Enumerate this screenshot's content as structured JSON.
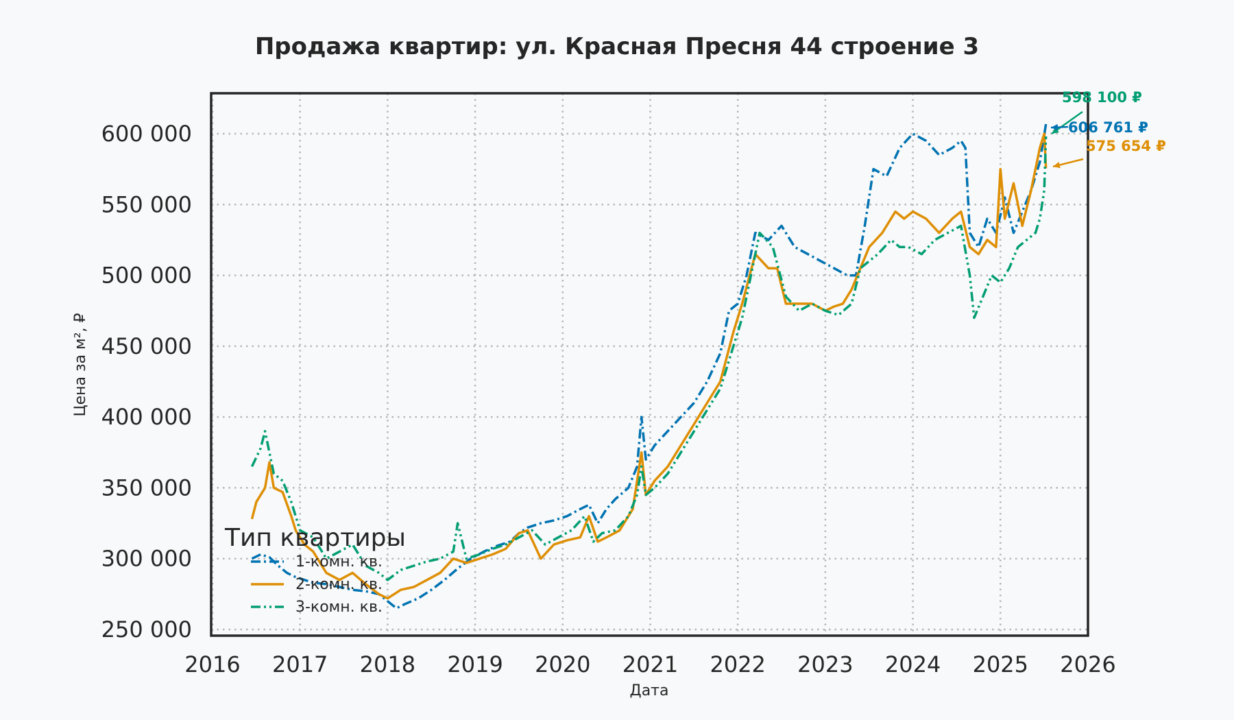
{
  "title": "Продажа квартир: ул. Красная Пресня 44 строение 3",
  "chart_data": {
    "type": "line",
    "title": "Продажа квартир: ул. Красная Пресня 44 строение 3",
    "xlabel": "Дата",
    "ylabel": "Цена за м², ₽",
    "xlim": [
      2016,
      2026
    ],
    "ylim": [
      245000,
      630000
    ],
    "x_ticks": [
      "2016",
      "2017",
      "2018",
      "2019",
      "2020",
      "2021",
      "2022",
      "2023",
      "2024",
      "2025",
      "2026"
    ],
    "y_ticks": [
      "250 000",
      "300 000",
      "350 000",
      "400 000",
      "450 000",
      "500 000",
      "550 000",
      "600 000"
    ],
    "y_tick_values": [
      250000,
      300000,
      350000,
      400000,
      450000,
      500000,
      550000,
      600000
    ],
    "grid": true,
    "legend": {
      "title": "Тип квартиры",
      "position": "lower left",
      "entries": [
        "1-комн. кв.",
        "2-комн. кв.",
        "3-комн. кв."
      ]
    },
    "series": [
      {
        "name": "1-комн. кв.",
        "color": "#0173B2",
        "style": "dashdot",
        "x": [
          2016.45,
          2016.55,
          2016.65,
          2016.75,
          2016.85,
          2016.95,
          2017.05,
          2017.15,
          2017.3,
          2017.45,
          2017.6,
          2017.75,
          2017.9,
          2018.0,
          2018.1,
          2018.2,
          2018.35,
          2018.5,
          2018.65,
          2018.8,
          2018.95,
          2019.1,
          2019.25,
          2019.4,
          2019.5,
          2019.6,
          2019.75,
          2019.9,
          2020.05,
          2020.2,
          2020.3,
          2020.4,
          2020.5,
          2020.6,
          2020.75,
          2020.85,
          2020.9,
          2020.95,
          2021.05,
          2021.2,
          2021.35,
          2021.5,
          2021.65,
          2021.8,
          2021.9,
          2022.0,
          2022.1,
          2022.2,
          2022.35,
          2022.5,
          2022.65,
          2022.8,
          2022.95,
          2023.1,
          2023.25,
          2023.35,
          2023.45,
          2023.55,
          2023.7,
          2023.85,
          2024.0,
          2024.15,
          2024.3,
          2024.45,
          2024.55,
          2024.6,
          2024.65,
          2024.75,
          2024.85,
          2024.95,
          2025.05,
          2025.15,
          2025.25,
          2025.35,
          2025.45,
          2025.52
        ],
        "y": [
          300000,
          303000,
          301000,
          295000,
          290000,
          287000,
          285000,
          283000,
          282000,
          280000,
          278000,
          277000,
          275000,
          270000,
          265000,
          268000,
          272000,
          278000,
          285000,
          293000,
          300000,
          305000,
          309000,
          312000,
          318000,
          322000,
          325000,
          327000,
          330000,
          335000,
          338000,
          325000,
          335000,
          342000,
          350000,
          365000,
          400000,
          370000,
          380000,
          390000,
          400000,
          410000,
          425000,
          445000,
          475000,
          480000,
          500000,
          530000,
          525000,
          535000,
          520000,
          515000,
          510000,
          505000,
          500000,
          500000,
          535000,
          575000,
          570000,
          590000,
          600000,
          595000,
          585000,
          590000,
          595000,
          590000,
          530000,
          520000,
          540000,
          530000,
          555000,
          530000,
          545000,
          560000,
          580000,
          606761
        ]
      },
      {
        "name": "2-комн. кв.",
        "color": "#DE8F05",
        "style": "solid",
        "x": [
          2016.45,
          2016.5,
          2016.6,
          2016.65,
          2016.7,
          2016.8,
          2016.9,
          2016.95,
          2017.05,
          2017.15,
          2017.3,
          2017.45,
          2017.6,
          2017.75,
          2017.9,
          2018.0,
          2018.15,
          2018.3,
          2018.45,
          2018.6,
          2018.75,
          2018.9,
          2019.05,
          2019.2,
          2019.35,
          2019.5,
          2019.6,
          2019.75,
          2019.9,
          2020.05,
          2020.2,
          2020.3,
          2020.4,
          2020.5,
          2020.65,
          2020.8,
          2020.9,
          2020.95,
          2021.05,
          2021.2,
          2021.35,
          2021.5,
          2021.65,
          2021.8,
          2021.95,
          2022.05,
          2022.2,
          2022.35,
          2022.45,
          2022.55,
          2022.7,
          2022.85,
          2023.0,
          2023.1,
          2023.2,
          2023.3,
          2023.4,
          2023.5,
          2023.65,
          2023.8,
          2023.9,
          2024.0,
          2024.15,
          2024.3,
          2024.45,
          2024.55,
          2024.65,
          2024.75,
          2024.85,
          2024.95,
          2025.0,
          2025.05,
          2025.15,
          2025.25,
          2025.35,
          2025.45,
          2025.5,
          2025.52
        ],
        "y": [
          328000,
          340000,
          350000,
          368000,
          350000,
          347000,
          330000,
          320000,
          310000,
          305000,
          290000,
          285000,
          290000,
          282000,
          275000,
          272000,
          278000,
          280000,
          285000,
          290000,
          300000,
          297000,
          300000,
          303000,
          307000,
          318000,
          320000,
          300000,
          310000,
          313000,
          315000,
          330000,
          312000,
          315000,
          320000,
          335000,
          375000,
          345000,
          355000,
          365000,
          380000,
          395000,
          410000,
          425000,
          460000,
          480000,
          515000,
          505000,
          505000,
          480000,
          480000,
          480000,
          475000,
          478000,
          480000,
          490000,
          505000,
          520000,
          530000,
          545000,
          540000,
          545000,
          540000,
          530000,
          540000,
          545000,
          520000,
          515000,
          525000,
          520000,
          575000,
          540000,
          565000,
          535000,
          560000,
          590000,
          600000,
          575654
        ]
      },
      {
        "name": "3-комн. кв.",
        "color": "#029E73",
        "style": "dashdotdot",
        "x": [
          2016.45,
          2016.55,
          2016.6,
          2016.7,
          2016.8,
          2016.9,
          2017.0,
          2017.15,
          2017.3,
          2017.45,
          2017.6,
          2017.75,
          2017.9,
          2018.0,
          2018.15,
          2018.3,
          2018.45,
          2018.6,
          2018.75,
          2018.8,
          2018.9,
          2019.05,
          2019.2,
          2019.35,
          2019.5,
          2019.65,
          2019.8,
          2019.95,
          2020.1,
          2020.25,
          2020.35,
          2020.45,
          2020.6,
          2020.75,
          2020.85,
          2020.9,
          2020.95,
          2021.05,
          2021.2,
          2021.35,
          2021.5,
          2021.65,
          2021.8,
          2021.95,
          2022.05,
          2022.15,
          2022.25,
          2022.4,
          2022.55,
          2022.7,
          2022.85,
          2023.0,
          2023.15,
          2023.3,
          2023.4,
          2023.5,
          2023.6,
          2023.75,
          2023.85,
          2023.95,
          2024.1,
          2024.25,
          2024.4,
          2024.55,
          2024.65,
          2024.7,
          2024.8,
          2024.9,
          2025.0,
          2025.1,
          2025.2,
          2025.3,
          2025.4,
          2025.45,
          2025.5,
          2025.52
        ],
        "y": [
          365000,
          378000,
          390000,
          360000,
          355000,
          340000,
          320000,
          315000,
          300000,
          305000,
          310000,
          295000,
          290000,
          285000,
          292000,
          295000,
          298000,
          300000,
          305000,
          325000,
          300000,
          303000,
          307000,
          310000,
          315000,
          320000,
          310000,
          315000,
          320000,
          330000,
          312000,
          318000,
          320000,
          330000,
          345000,
          365000,
          345000,
          350000,
          360000,
          375000,
          390000,
          405000,
          420000,
          450000,
          470000,
          500000,
          530000,
          520000,
          485000,
          475000,
          480000,
          475000,
          472000,
          480000,
          505000,
          510000,
          515000,
          525000,
          520000,
          520000,
          515000,
          525000,
          530000,
          535000,
          500000,
          470000,
          485000,
          500000,
          495000,
          505000,
          520000,
          525000,
          530000,
          540000,
          560000,
          598100
        ]
      }
    ],
    "annotations": [
      {
        "text": "598 100 ₽",
        "color": "#029E73",
        "x": 2025.52,
        "y": 598100
      },
      {
        "text": "606 761 ₽",
        "color": "#0173B2",
        "x": 2025.52,
        "y": 606761
      },
      {
        "text": "575 654 ₽",
        "color": "#DE8F05",
        "x": 2025.52,
        "y": 575654
      }
    ]
  }
}
